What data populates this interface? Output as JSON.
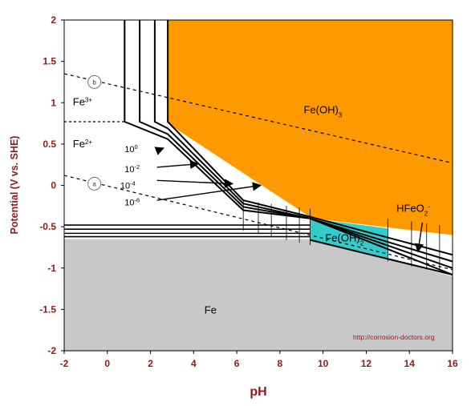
{
  "chart_data": {
    "type": "area",
    "title": "",
    "xlabel": "pH",
    "ylabel": "Potential (V vs. SHE)",
    "xlim": [
      -2,
      16
    ],
    "ylim": [
      -2,
      2
    ],
    "x_ticks": [
      -2,
      0,
      2,
      4,
      6,
      8,
      10,
      12,
      14,
      16
    ],
    "y_ticks": [
      2,
      1.5,
      1,
      0.5,
      0,
      -0.5,
      -1,
      -1.5,
      -2
    ],
    "grid": false,
    "colors": {
      "fe_oh3": "#ff9900",
      "fe": "#c8c8c8",
      "fe_oh2": "#33cccc",
      "tick_text": "#8b1a1a"
    },
    "regions": [
      {
        "label": "Fe(OH)3",
        "color": "#ff9900",
        "boundary": [
          [
            2.8,
            2
          ],
          [
            16,
            2
          ],
          [
            16,
            -0.6
          ],
          [
            9.5,
            -0.4
          ],
          [
            2.8,
            0.75
          ]
        ]
      },
      {
        "label": "Fe",
        "color": "#c8c8c8",
        "boundary": [
          [
            -2,
            -0.65
          ],
          [
            9.5,
            -0.65
          ],
          [
            16,
            -1.1
          ],
          [
            16,
            -2
          ],
          [
            -2,
            -2
          ]
        ]
      },
      {
        "label": "Fe(OH)2",
        "color": "#33cccc",
        "boundary": [
          [
            9.4,
            -0.4
          ],
          [
            13,
            -0.52
          ],
          [
            13,
            -0.88
          ],
          [
            9.4,
            -0.66
          ]
        ]
      }
    ],
    "text_labels": [
      {
        "text": "Fe3+",
        "x": -0.8,
        "y": 0.97
      },
      {
        "text": "Fe2+",
        "x": -0.8,
        "y": 0.46
      },
      {
        "text": "HFeO2-",
        "x": 13.3,
        "y": -0.32
      }
    ],
    "concentration_labels": [
      "10^0",
      "10^-2",
      "10^-4",
      "10^-6"
    ],
    "boundary_series": [
      {
        "name": "10^0",
        "points": [
          [
            0.8,
            2
          ],
          [
            0.8,
            0.77
          ],
          [
            2.8,
            0.56
          ],
          [
            6.3,
            -0.3
          ],
          [
            9.4,
            -0.4
          ],
          [
            16,
            -1.08
          ]
        ]
      },
      {
        "name": "10^-2",
        "points": [
          [
            1.5,
            2
          ],
          [
            1.5,
            0.77
          ],
          [
            2.8,
            0.62
          ],
          [
            6.3,
            -0.26
          ],
          [
            9.4,
            -0.4
          ],
          [
            16,
            -1.0
          ]
        ]
      },
      {
        "name": "10^-4",
        "points": [
          [
            2.2,
            2
          ],
          [
            2.2,
            0.77
          ],
          [
            2.8,
            0.69
          ],
          [
            6.3,
            -0.22
          ],
          [
            9.4,
            -0.4
          ],
          [
            16,
            -0.92
          ]
        ]
      },
      {
        "name": "10^-6",
        "points": [
          [
            2.8,
            2
          ],
          [
            2.8,
            0.77
          ],
          [
            6.3,
            -0.18
          ],
          [
            9.4,
            -0.38
          ],
          [
            16,
            -0.84
          ]
        ]
      }
    ],
    "hlines": [
      -0.48,
      -0.53,
      -0.58,
      -0.62
    ],
    "water_lines": [
      {
        "label": "a",
        "points": [
          [
            -2,
            0.12
          ],
          [
            16,
            -1.02
          ]
        ]
      },
      {
        "label": "b",
        "points": [
          [
            -2,
            1.35
          ],
          [
            16,
            0.27
          ]
        ]
      }
    ],
    "fe3_fe2_line": {
      "points": [
        [
          -2,
          0.77
        ],
        [
          0.8,
          0.77
        ]
      ]
    },
    "credit": "http://corrosion-doctors.org"
  }
}
